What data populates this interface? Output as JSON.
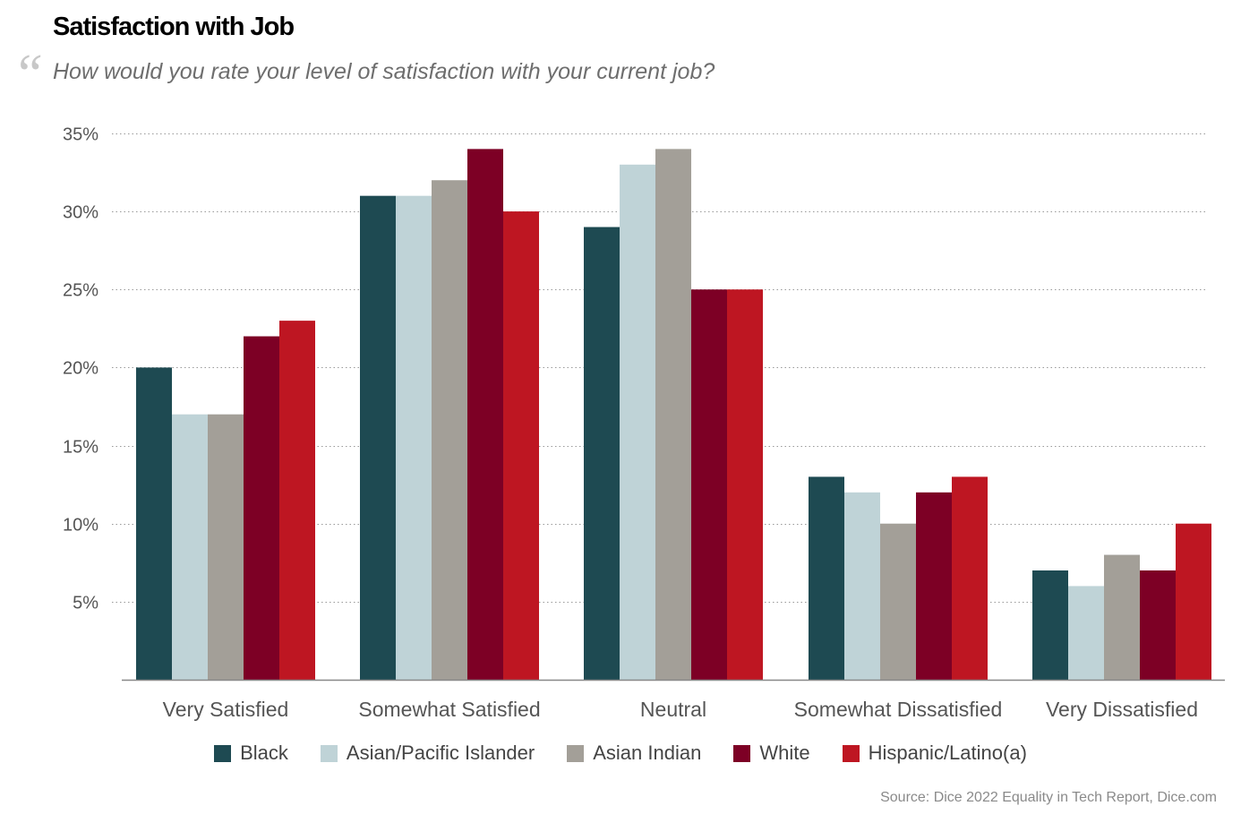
{
  "header": {
    "title": "Satisfaction with Job",
    "quote_mark": "“",
    "subtitle": "How would you rate your level of satisfaction with your current job?"
  },
  "source": "Source: Dice 2022 Equality in Tech Report, Dice.com",
  "chart_data": {
    "type": "bar",
    "title": "Satisfaction with Job",
    "subtitle": "How would you rate your level of satisfaction with your current job?",
    "xlabel": "",
    "ylabel": "",
    "ylim": [
      0,
      35
    ],
    "y_ticks": [
      5,
      10,
      15,
      20,
      25,
      30,
      35
    ],
    "y_tick_labels": [
      "5%",
      "10%",
      "15%",
      "20%",
      "25%",
      "30%",
      "35%"
    ],
    "grid": true,
    "legend_position": "bottom",
    "categories": [
      "Very Satisfied",
      "Somewhat Satisfied",
      "Neutral",
      "Somewhat Dissatisfied",
      "Very Dissatisfied"
    ],
    "series": [
      {
        "name": "Black",
        "color": "#1e4a52",
        "values": [
          20,
          31,
          29,
          13,
          7
        ]
      },
      {
        "name": "Asian/Pacific Islander",
        "color": "#bfd3d7",
        "values": [
          17,
          31,
          33,
          12,
          6
        ]
      },
      {
        "name": "Asian Indian",
        "color": "#a39f98",
        "values": [
          17,
          32,
          34,
          10,
          8
        ]
      },
      {
        "name": "White",
        "color": "#7d0025",
        "values": [
          22,
          34,
          25,
          12,
          7
        ]
      },
      {
        "name": "Hispanic/Latino(a)",
        "color": "#be1622",
        "values": [
          23,
          30,
          25,
          13,
          10
        ]
      }
    ]
  }
}
